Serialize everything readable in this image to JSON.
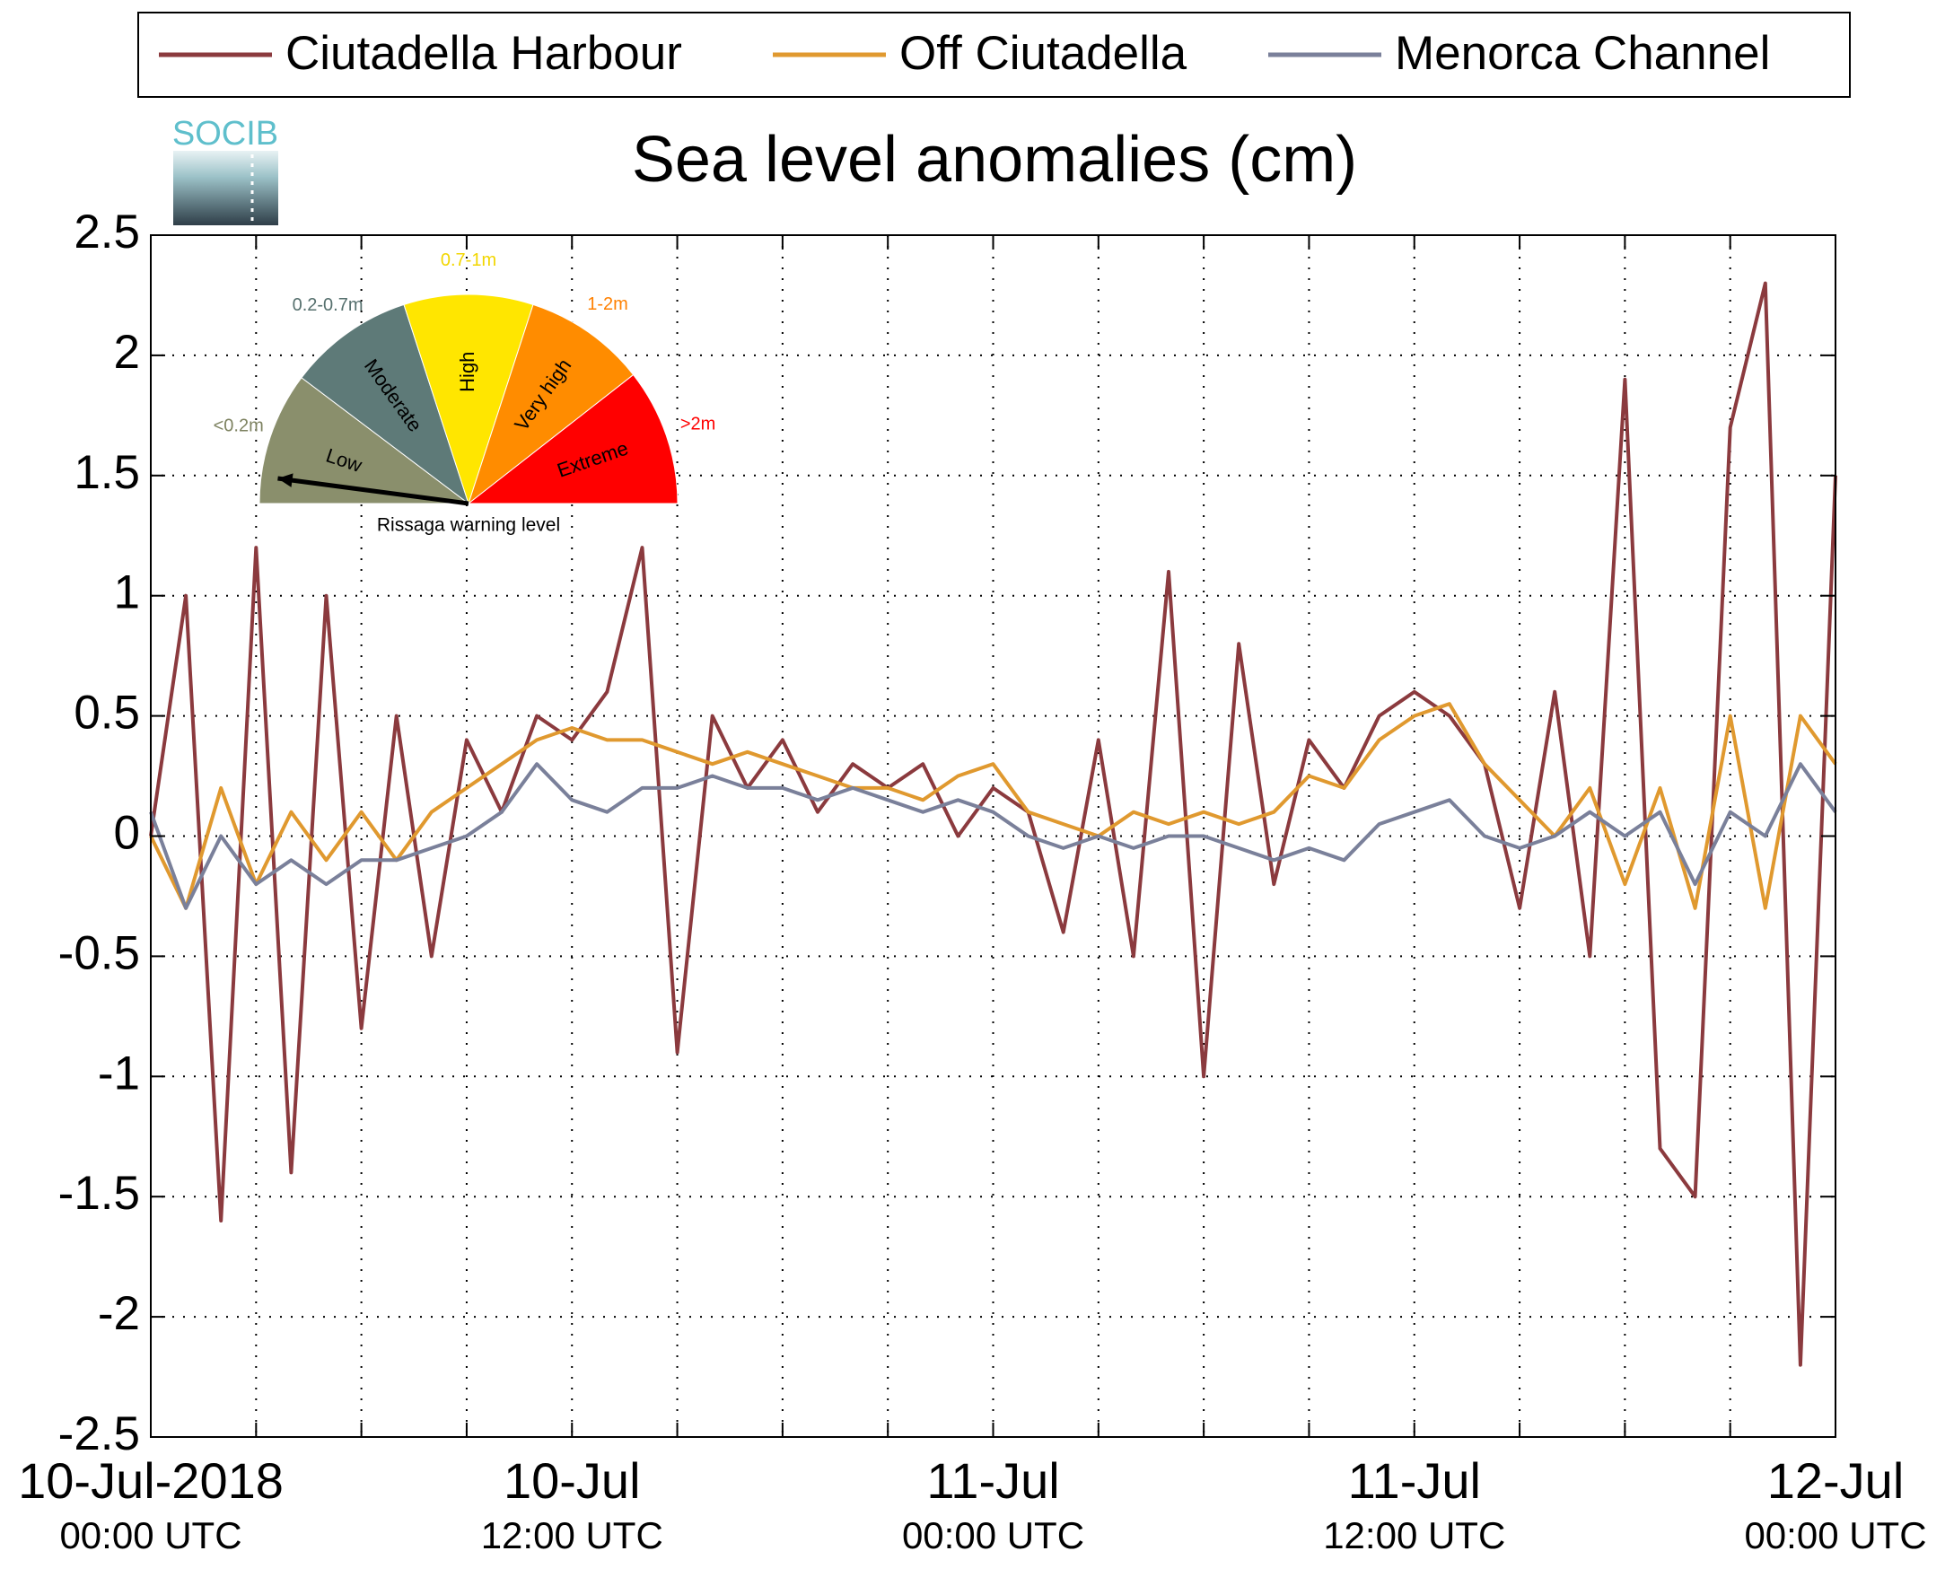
{
  "chart_data": {
    "type": "line",
    "title": "Sea level anomalies (cm)",
    "logo": "SOCIB",
    "x": [
      0,
      1,
      2,
      3,
      4,
      5,
      6,
      7,
      8,
      9,
      10,
      11,
      12,
      13,
      14,
      15,
      16,
      17,
      18,
      19,
      20,
      21,
      22,
      23,
      24,
      25,
      26,
      27,
      28,
      29,
      30,
      31,
      32,
      33,
      34,
      35,
      36,
      37,
      38,
      39,
      40,
      41,
      42,
      43,
      44,
      45,
      46,
      47,
      48
    ],
    "series": [
      {
        "name": "Ciutadella Harbour",
        "color": "#8b3a3e",
        "values": [
          0,
          1.0,
          -1.6,
          1.2,
          -1.4,
          1.0,
          -0.8,
          0.5,
          -0.5,
          0.4,
          0.1,
          0.5,
          0.4,
          0.6,
          1.2,
          -0.9,
          0.5,
          0.2,
          0.4,
          0.1,
          0.3,
          0.2,
          0.3,
          0.0,
          0.2,
          0.1,
          -0.4,
          0.4,
          -0.5,
          1.1,
          -1.0,
          0.8,
          -0.2,
          0.4,
          0.2,
          0.5,
          0.6,
          0.5,
          0.3,
          -0.3,
          0.6,
          -0.5,
          1.9,
          -1.3,
          -1.5,
          1.7,
          2.3,
          -2.2,
          1.5
        ]
      },
      {
        "name": "Off Ciutadella",
        "color": "#e0992f",
        "values": [
          0,
          -0.3,
          0.2,
          -0.2,
          0.1,
          -0.1,
          0.1,
          -0.1,
          0.1,
          0.2,
          0.3,
          0.4,
          0.45,
          0.4,
          0.4,
          0.35,
          0.3,
          0.35,
          0.3,
          0.25,
          0.2,
          0.2,
          0.15,
          0.25,
          0.3,
          0.1,
          0.05,
          0.0,
          0.1,
          0.05,
          0.1,
          0.05,
          0.1,
          0.25,
          0.2,
          0.4,
          0.5,
          0.55,
          0.3,
          0.15,
          0.0,
          0.2,
          -0.2,
          0.2,
          -0.3,
          0.5,
          -0.3,
          0.5,
          0.3
        ]
      },
      {
        "name": "Menorca Channel",
        "color": "#7a809a",
        "values": [
          0.1,
          -0.3,
          0.0,
          -0.2,
          -0.1,
          -0.2,
          -0.1,
          -0.1,
          -0.05,
          0.0,
          0.1,
          0.3,
          0.15,
          0.1,
          0.2,
          0.2,
          0.25,
          0.2,
          0.2,
          0.15,
          0.2,
          0.15,
          0.1,
          0.15,
          0.1,
          0.0,
          -0.05,
          0.0,
          -0.05,
          0.0,
          0.0,
          -0.05,
          -0.1,
          -0.05,
          -0.1,
          0.05,
          0.1,
          0.15,
          0.0,
          -0.05,
          0.0,
          0.1,
          0.0,
          0.1,
          -0.2,
          0.1,
          0.0,
          0.3,
          0.1
        ]
      }
    ],
    "xlim": [
      0,
      48
    ],
    "xticks": [
      {
        "value": 0,
        "label": "10-Jul-2018\n00:00 UTC"
      },
      {
        "value": 12,
        "label": "10-Jul\n12:00 UTC"
      },
      {
        "value": 24,
        "label": "11-Jul\n00:00 UTC"
      },
      {
        "value": 36,
        "label": "11-Jul\n12:00 UTC"
      },
      {
        "value": 48,
        "label": "12-Jul\n00:00 UTC"
      }
    ],
    "xminorticks": [
      3,
      6,
      9,
      15,
      18,
      21,
      27,
      30,
      33,
      39,
      42,
      45
    ],
    "ylim": [
      -2.5,
      2.5
    ],
    "yticks": [
      -2.5,
      -2,
      -1.5,
      -1,
      -0.5,
      0,
      0.5,
      1,
      1.5,
      2,
      2.5
    ],
    "grid": true,
    "legend": "top",
    "gauge": {
      "title": "Rissaga warning level",
      "needle": 0,
      "levels": [
        {
          "name": "Low",
          "range": "<0.2m",
          "color": "#8a8f6c",
          "label_color": "#7d8260"
        },
        {
          "name": "Moderate",
          "range": "0.2-0.7m",
          "color": "#5e7a78",
          "label_color": "#56706e"
        },
        {
          "name": "High",
          "range": "0.7-1m",
          "color": "#ffe600",
          "label_color": "#f2d600"
        },
        {
          "name": "Very high",
          "range": "1-2m",
          "color": "#ff8c00",
          "label_color": "#ff8000"
        },
        {
          "name": "Extreme",
          "range": ">2m",
          "color": "#ff0000",
          "label_color": "#ff0000"
        }
      ]
    }
  }
}
